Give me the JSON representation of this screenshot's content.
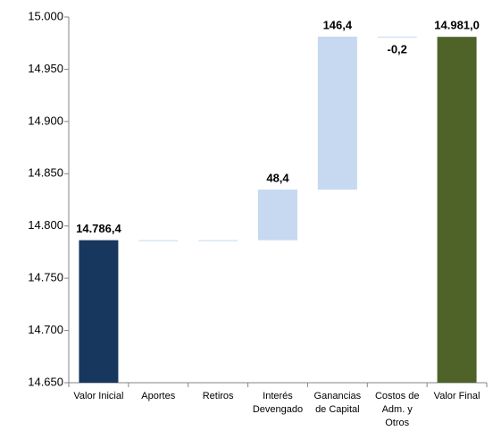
{
  "chart_data": {
    "type": "waterfall",
    "categories": [
      "Valor Inicial",
      "Aportes",
      "Retiros",
      "Interés Devengado",
      "Ganancias de Capital",
      "Costos de Adm. y Otros",
      "Valor Final"
    ],
    "values": [
      14786.4,
      0,
      0,
      48.4,
      146.4,
      -0.2,
      14981.0
    ],
    "value_labels": [
      "14.786,4",
      null,
      null,
      "48,4",
      "146,4",
      "-0,2",
      "14.981,0"
    ],
    "totals": [
      true,
      false,
      false,
      false,
      false,
      false,
      true
    ],
    "colors": [
      "#17375e",
      "#c6d9f1",
      "#c6d9f1",
      "#c6d9f1",
      "#c6d9f1",
      "#c6d9f1",
      "#4f6228"
    ],
    "ylim": [
      14650,
      15000
    ],
    "yticks": [
      {
        "value": 14650,
        "label": "14.650"
      },
      {
        "value": 14700,
        "label": "14.700"
      },
      {
        "value": 14750,
        "label": "14.750"
      },
      {
        "value": 14800,
        "label": "14.800"
      },
      {
        "value": 14850,
        "label": "14.850"
      },
      {
        "value": 14900,
        "label": "14.900"
      },
      {
        "value": 14950,
        "label": "14.950"
      },
      {
        "value": 15000,
        "label": "15.000"
      }
    ],
    "grid": false
  }
}
